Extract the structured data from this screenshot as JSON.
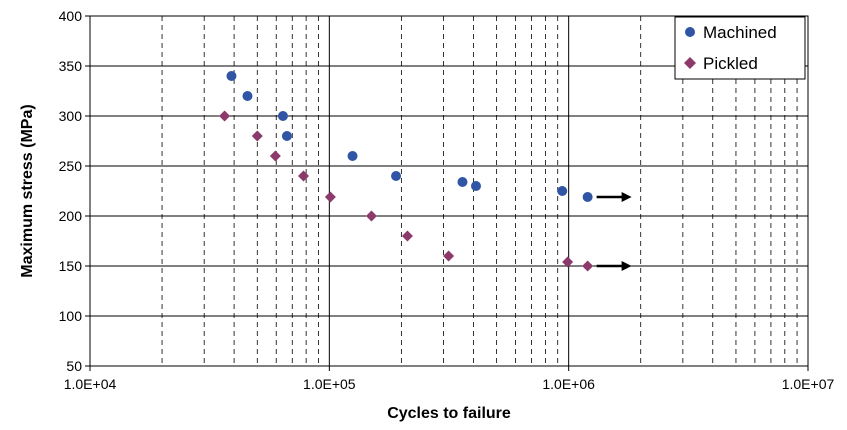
{
  "chart_data": {
    "type": "scatter",
    "title": "",
    "xlabel": "Cycles to failure",
    "ylabel": "Maximum stress (MPa)",
    "xscale": "log",
    "xlim": [
      10000,
      10000000
    ],
    "ylim": [
      50,
      400
    ],
    "x_tick_labels": [
      "1.0E+04",
      "1.0E+05",
      "1.0E+06",
      "1.0E+07"
    ],
    "y_tick_labels": [
      "50",
      "100",
      "150",
      "200",
      "250",
      "300",
      "350",
      "400"
    ],
    "grid": true,
    "legend_position": "top-right",
    "series": [
      {
        "name": "Machined",
        "marker": "circle",
        "color": "#2f55a4",
        "points": [
          {
            "x": 39000,
            "y": 340
          },
          {
            "x": 45500,
            "y": 320
          },
          {
            "x": 64000,
            "y": 300
          },
          {
            "x": 66500,
            "y": 280
          },
          {
            "x": 125000,
            "y": 260
          },
          {
            "x": 190000,
            "y": 240
          },
          {
            "x": 360000,
            "y": 234
          },
          {
            "x": 410000,
            "y": 230
          },
          {
            "x": 940000,
            "y": 225
          },
          {
            "x": 1200000,
            "y": 219,
            "runout": true
          }
        ]
      },
      {
        "name": "Pickled",
        "marker": "diamond",
        "color": "#8b3a6b",
        "points": [
          {
            "x": 36500,
            "y": 300
          },
          {
            "x": 50000,
            "y": 280
          },
          {
            "x": 59500,
            "y": 260
          },
          {
            "x": 78000,
            "y": 240
          },
          {
            "x": 101000,
            "y": 219
          },
          {
            "x": 150000,
            "y": 200
          },
          {
            "x": 212000,
            "y": 180
          },
          {
            "x": 315000,
            "y": 160
          },
          {
            "x": 990000,
            "y": 154
          },
          {
            "x": 1200000,
            "y": 150,
            "runout": true
          }
        ]
      }
    ]
  }
}
